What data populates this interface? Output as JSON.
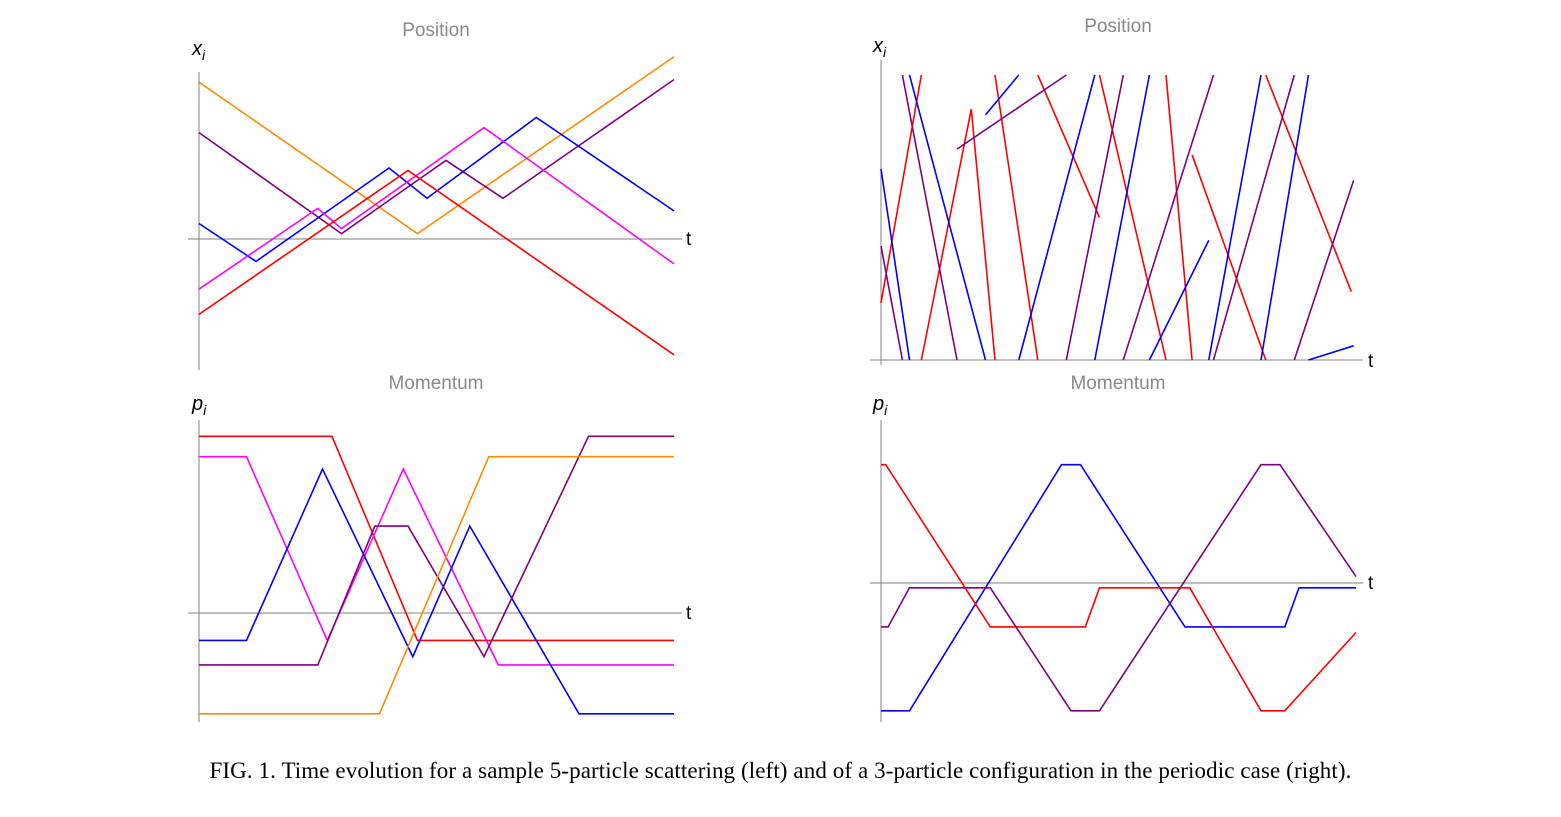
{
  "caption": "FIG. 1.   Time evolution for a sample 5-particle scattering (left) and of a 3-particle configuration in the periodic case (right).",
  "chart_data": [
    {
      "id": "left-position",
      "type": "line",
      "title": "Position",
      "ylabel": "x",
      "ylabel_sub": "i",
      "xlabel": "t",
      "xlim": [
        0,
        10
      ],
      "ylim": [
        -2.8,
        3.1
      ],
      "series": [
        {
          "color": "#ff8c00",
          "x": [
            0,
            4.6,
            10
          ],
          "y": [
            2.9,
            -0.1,
            3.4
          ]
        },
        {
          "color": "#800080",
          "x": [
            0,
            3.0,
            5.2,
            6.4,
            10
          ],
          "y": [
            1.9,
            -0.1,
            1.35,
            0.6,
            2.95
          ]
        },
        {
          "color": "#0000ff",
          "x": [
            0,
            1.2,
            4.0,
            4.8,
            7.1,
            10
          ],
          "y": [
            0.1,
            -0.65,
            1.2,
            0.6,
            2.2,
            0.35
          ]
        },
        {
          "color": "#ff00ff",
          "x": [
            0,
            2.5,
            3.0,
            6.0,
            10
          ],
          "y": [
            -1.2,
            0.4,
            0.0,
            2.0,
            -0.7
          ]
        },
        {
          "color": "#ff0000",
          "x": [
            0,
            4.4,
            10
          ],
          "y": [
            -1.7,
            1.15,
            -2.5
          ]
        }
      ]
    },
    {
      "id": "right-position",
      "type": "line",
      "title": "Position",
      "ylabel": "x",
      "ylabel_sub": "i",
      "xlabel": "t",
      "xlim": [
        0,
        10
      ],
      "ylim": [
        0,
        1
      ],
      "series": [
        {
          "color": "#ff0000",
          "x": [
            0,
            0.85,
            0.85,
            1.9,
            2.4,
            2.4,
            3.3,
            3.3,
            4.6,
            4.6,
            6.0,
            6.0,
            6.55,
            6.55,
            8.1,
            8.1,
            9.9
          ],
          "y": [
            0.2,
            1,
            0,
            0.88,
            0,
            1,
            0,
            1,
            0.5,
            1,
            0,
            1,
            0,
            0.72,
            0,
            1,
            0.24
          ]
        },
        {
          "color": "#0000ff",
          "x": [
            0,
            0.6,
            0.6,
            2.2,
            2.2,
            2.9,
            2.9,
            4.5,
            4.5,
            5.65,
            5.65,
            6.9,
            6.9,
            8.0,
            8.0,
            9.0,
            9.0,
            9.95
          ],
          "y": [
            0.67,
            0,
            1,
            0,
            0.86,
            1,
            0,
            1,
            0,
            1,
            0,
            0.42,
            0,
            1,
            0,
            1,
            0,
            0.05
          ]
        },
        {
          "color": "#800080",
          "x": [
            0,
            0.45,
            0.45,
            1.6,
            1.6,
            3.9,
            3.9,
            5.1,
            5.1,
            7.0,
            7.0,
            8.7,
            8.7,
            9.95
          ],
          "y": [
            0.4,
            0,
            1,
            0,
            0.74,
            1,
            0,
            1,
            0,
            1,
            0,
            1,
            0,
            0.63
          ]
        }
      ]
    },
    {
      "id": "left-momentum",
      "type": "line",
      "title": "Momentum",
      "ylabel": "p",
      "ylabel_sub": "i",
      "xlabel": "t",
      "xlim": [
        0,
        10
      ],
      "ylim": [
        -1.3,
        2.4
      ],
      "series": [
        {
          "color": "#ff0000",
          "x": [
            0,
            2.8,
            4.6,
            10
          ],
          "y": [
            2.2,
            2.2,
            -0.3,
            -0.3
          ]
        },
        {
          "color": "#ff00ff",
          "x": [
            0,
            1.0,
            2.7,
            4.3,
            6.3,
            10
          ],
          "y": [
            1.95,
            1.95,
            -0.3,
            1.8,
            -0.6,
            -0.6
          ]
        },
        {
          "color": "#0000ff",
          "x": [
            0,
            1.0,
            2.6,
            4.5,
            5.7,
            8.0,
            10
          ],
          "y": [
            -0.3,
            -0.3,
            1.8,
            -0.5,
            1.1,
            -1.2,
            -1.2
          ]
        },
        {
          "color": "#800080",
          "x": [
            0,
            2.5,
            3.7,
            4.4,
            6.0,
            8.2,
            10
          ],
          "y": [
            -0.6,
            -0.6,
            1.1,
            1.1,
            -0.5,
            2.2,
            2.2
          ]
        },
        {
          "color": "#ff8c00",
          "x": [
            0,
            3.8,
            6.1,
            10
          ],
          "y": [
            -1.2,
            -1.2,
            1.95,
            1.95
          ]
        }
      ]
    },
    {
      "id": "right-momentum",
      "type": "line",
      "title": "Momentum",
      "ylabel": "p",
      "ylabel_sub": "i",
      "xlabel": "t",
      "xlim": [
        0,
        10
      ],
      "ylim": [
        -1.1,
        1.6
      ],
      "series": [
        {
          "color": "#0000ff",
          "x": [
            0,
            0.6,
            3.8,
            4.2,
            6.4,
            8.5,
            8.8,
            10
          ],
          "y": [
            -1.0,
            -1.0,
            1.2,
            1.2,
            -0.25,
            -0.25,
            0.1,
            0.1
          ]
        },
        {
          "color": "#ff0000",
          "x": [
            0,
            0.1,
            2.3,
            4.3,
            4.6,
            6.5,
            8.0,
            8.5,
            10
          ],
          "y": [
            1.2,
            1.2,
            -0.25,
            -0.25,
            0.1,
            0.1,
            -1.0,
            -1.0,
            -0.3
          ]
        },
        {
          "color": "#800080",
          "x": [
            0,
            0.15,
            0.6,
            2.3,
            4.0,
            4.6,
            8.0,
            8.4,
            10
          ],
          "y": [
            -0.25,
            -0.25,
            0.1,
            0.1,
            -1.0,
            -1.0,
            1.2,
            1.2,
            0.2
          ]
        }
      ]
    }
  ]
}
